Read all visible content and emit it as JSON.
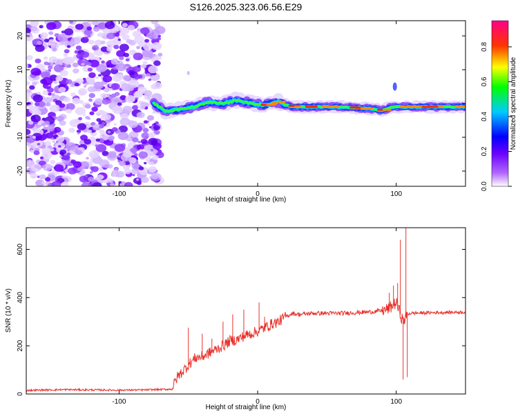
{
  "title": "S126.2025.323.06.56.E29",
  "chart_data": [
    {
      "type": "heatmap",
      "name": "spectrogram",
      "xlabel": "Height of straight line (km)",
      "ylabel": "Frequency (Hz)",
      "xlim": [
        -167,
        150
      ],
      "ylim": [
        -24.5,
        24.5
      ],
      "xticks": [
        -100,
        0,
        100
      ],
      "yticks": [
        -20,
        -10,
        0,
        10,
        20
      ],
      "noise_region_x": [
        -167,
        -70
      ],
      "signal_track": {
        "x": [
          -75,
          -65,
          -55,
          -45,
          -35,
          -25,
          -15,
          -5,
          5,
          15,
          25,
          40,
          60,
          80,
          90,
          97,
          100,
          110,
          130,
          150
        ],
        "freq": [
          0.0,
          -2.5,
          -1.5,
          -1.0,
          0.5,
          0.0,
          1.0,
          0.0,
          -0.5,
          0.5,
          -1.0,
          -1.0,
          -1.0,
          -1.5,
          -2.0,
          -1.0,
          -1.0,
          -1.0,
          -1.0,
          -1.0
        ]
      },
      "colorbar": {
        "label": "Normalized spectral amplitude",
        "range": [
          0.0,
          0.95
        ],
        "ticks": [
          "0.0",
          "0.2",
          "0.4",
          "0.6",
          "0.8"
        ],
        "colors": [
          "#ffffff",
          "#7b00ff",
          "#0000ff",
          "#00ffff",
          "#00ff00",
          "#ffff00",
          "#ff9900",
          "#ff0000",
          "#ff0088"
        ]
      }
    },
    {
      "type": "line",
      "name": "snr",
      "xlabel": "Height of straight line (km)",
      "ylabel": "SNR (10 * v/v)",
      "xlim": [
        -167,
        150
      ],
      "ylim": [
        0,
        690
      ],
      "xticks": [
        -100,
        0,
        100
      ],
      "yticks": [
        0,
        200,
        400,
        600
      ],
      "color": "#e8302a",
      "series": [
        {
          "name": "SNR",
          "x": [
            -167,
            -140,
            -100,
            -80,
            -62,
            -58,
            -50,
            -45,
            -40,
            -35,
            -30,
            -25,
            -20,
            -15,
            -10,
            -5,
            0,
            5,
            10,
            15,
            20,
            25,
            30,
            40,
            60,
            80,
            90,
            95,
            100,
            103,
            105,
            107,
            108,
            110,
            130,
            150
          ],
          "y": [
            15,
            18,
            16,
            17,
            20,
            70,
            120,
            150,
            155,
            170,
            185,
            200,
            220,
            225,
            240,
            250,
            260,
            275,
            290,
            300,
            320,
            335,
            330,
            335,
            335,
            340,
            345,
            355,
            380,
            330,
            300,
            320,
            330,
            335,
            338,
            340
          ]
        }
      ],
      "spikes": [
        {
          "x": -50,
          "y": 275
        },
        {
          "x": -40,
          "y": 250
        },
        {
          "x": -33,
          "y": 230
        },
        {
          "x": -25,
          "y": 300
        },
        {
          "x": -18,
          "y": 330
        },
        {
          "x": -10,
          "y": 350
        },
        {
          "x": 1,
          "y": 380
        },
        {
          "x": 5,
          "y": 320
        },
        {
          "x": 95,
          "y": 420
        },
        {
          "x": 98,
          "y": 450
        },
        {
          "x": 101,
          "y": 460
        },
        {
          "x": 103,
          "y": 640
        },
        {
          "x": 105,
          "y": 60
        },
        {
          "x": 107,
          "y": 690
        },
        {
          "x": 108,
          "y": 70
        }
      ]
    }
  ]
}
